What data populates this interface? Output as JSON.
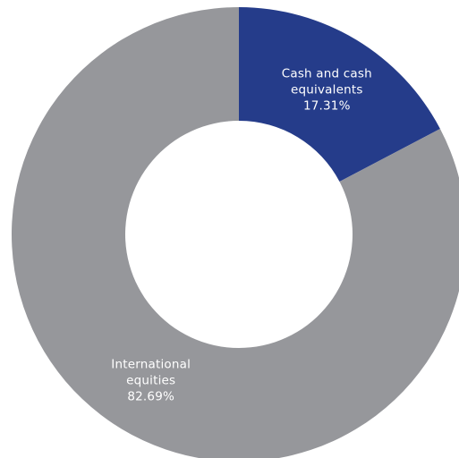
{
  "chart_data": {
    "type": "pie",
    "variant": "donut",
    "title": "",
    "slices": [
      {
        "category": "Cash and cash equivalents",
        "value": 17.31,
        "label_lines": [
          "Cash and cash",
          "equivalents",
          "17.31%"
        ],
        "color": "#253C8A"
      },
      {
        "category": "International equities",
        "value": 82.69,
        "label_lines": [
          "International",
          "equities",
          "82.69%"
        ],
        "color": "#96979B"
      }
    ],
    "legend": "none",
    "start_angle_deg": 0,
    "direction": "clockwise"
  }
}
